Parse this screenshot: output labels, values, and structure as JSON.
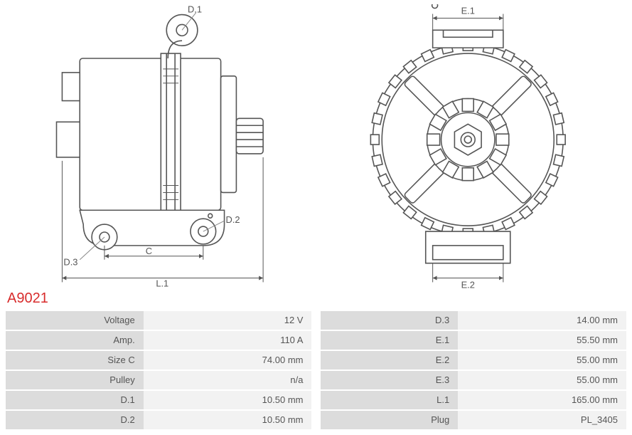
{
  "part_number": "A9021",
  "dimension_labels": {
    "D1": "D.1",
    "D2": "D.2",
    "D3": "D.3",
    "C": "C",
    "L1": "L.1",
    "E1": "E.1",
    "E2": "E.2"
  },
  "specs_left": [
    {
      "label": "Voltage",
      "value": "12 V"
    },
    {
      "label": "Amp.",
      "value": "110 A"
    },
    {
      "label": "Size C",
      "value": "74.00 mm"
    },
    {
      "label": "Pulley",
      "value": "n/a"
    },
    {
      "label": "D.1",
      "value": "10.50 mm"
    },
    {
      "label": "D.2",
      "value": "10.50 mm"
    }
  ],
  "specs_right": [
    {
      "label": "D.3",
      "value": "14.00 mm"
    },
    {
      "label": "E.1",
      "value": "55.50 mm"
    },
    {
      "label": "E.2",
      "value": "55.00 mm"
    },
    {
      "label": "E.3",
      "value": "55.00 mm"
    },
    {
      "label": "L.1",
      "value": "165.00 mm"
    },
    {
      "label": "Plug",
      "value": "PL_3405"
    }
  ],
  "diagram_style": {
    "stroke": "#555555",
    "stroke_width": 1.6,
    "fill": "#ffffff",
    "leader_color": "#888888"
  }
}
